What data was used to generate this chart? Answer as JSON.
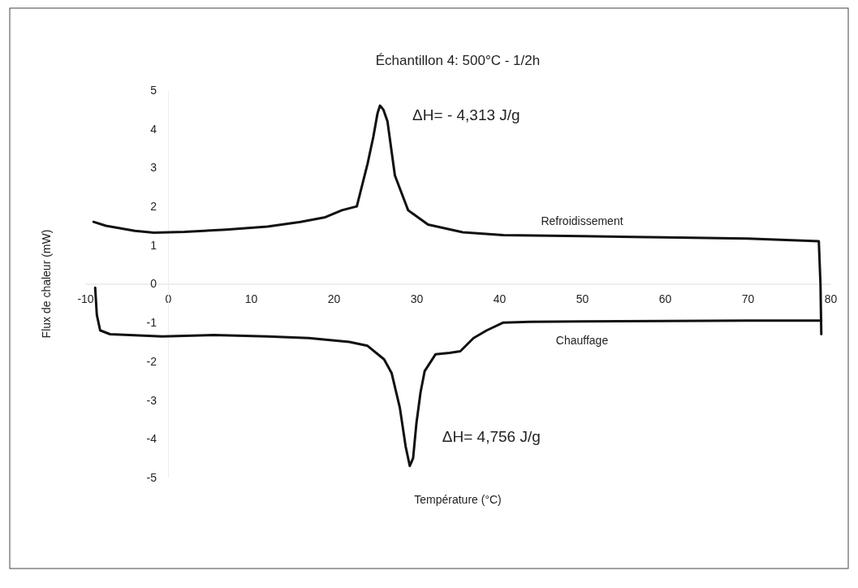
{
  "chart_data": {
    "type": "line",
    "title": "Échantillon 4: 500°C - 1/2h",
    "xlabel": "Température (°C)",
    "ylabel": "Flux de chaleur (mW)",
    "xlim": [
      -10,
      80
    ],
    "xticks": [
      -10,
      0,
      10,
      20,
      30,
      40,
      50,
      60,
      70,
      80
    ],
    "ylim": [
      -5,
      5
    ],
    "yticks": [
      -5,
      -4,
      -3,
      -2,
      -1,
      0,
      1,
      2,
      3,
      4,
      5
    ],
    "grid": false,
    "legend": false,
    "marker": "none",
    "line_style": "solid",
    "series": [
      {
        "name": "Refroidissement",
        "color": "#111111",
        "x": [
          -9,
          -7.5,
          -4,
          -1.7,
          2,
          7,
          12,
          16,
          19,
          21,
          22.8,
          24.1,
          24.8,
          25.3,
          25.6,
          26,
          26.5,
          27.4,
          29,
          31.4,
          35.6,
          40.5,
          50,
          60,
          70,
          78.6,
          78.8,
          78.9
        ],
        "values": [
          1.6,
          1.5,
          1.37,
          1.32,
          1.34,
          1.4,
          1.48,
          1.6,
          1.72,
          1.9,
          2.0,
          3.1,
          3.8,
          4.4,
          4.6,
          4.5,
          4.2,
          2.8,
          1.9,
          1.53,
          1.33,
          1.26,
          1.23,
          1.2,
          1.17,
          1.1,
          0,
          -1.3
        ]
      },
      {
        "name": "Chauffage",
        "color": "#111111",
        "x": [
          -8.8,
          -8.6,
          -8.2,
          -7,
          -0.7,
          5.5,
          12,
          17,
          21.9,
          24.1,
          26.1,
          27,
          28,
          28.7,
          29.2,
          29.6,
          30,
          30.5,
          31,
          32.3,
          34,
          35.3,
          36.9,
          38.5,
          40.5,
          43.7,
          50,
          60,
          70,
          78.9
        ],
        "values": [
          -0.1,
          -0.8,
          -1.2,
          -1.3,
          -1.36,
          -1.32,
          -1.36,
          -1.4,
          -1.5,
          -1.6,
          -1.95,
          -2.3,
          -3.2,
          -4.2,
          -4.7,
          -4.5,
          -3.6,
          -2.8,
          -2.25,
          -1.82,
          -1.78,
          -1.74,
          -1.4,
          -1.2,
          -1.0,
          -0.98,
          -0.97,
          -0.96,
          -0.95,
          -0.95
        ]
      }
    ],
    "annotations": [
      {
        "text": "ΔH= - 4,313 J/g",
        "x": 25.6,
        "y": 4.6
      },
      {
        "text": "ΔH=  4,756 J/g",
        "x": 29.2,
        "y": -4.7
      }
    ]
  }
}
